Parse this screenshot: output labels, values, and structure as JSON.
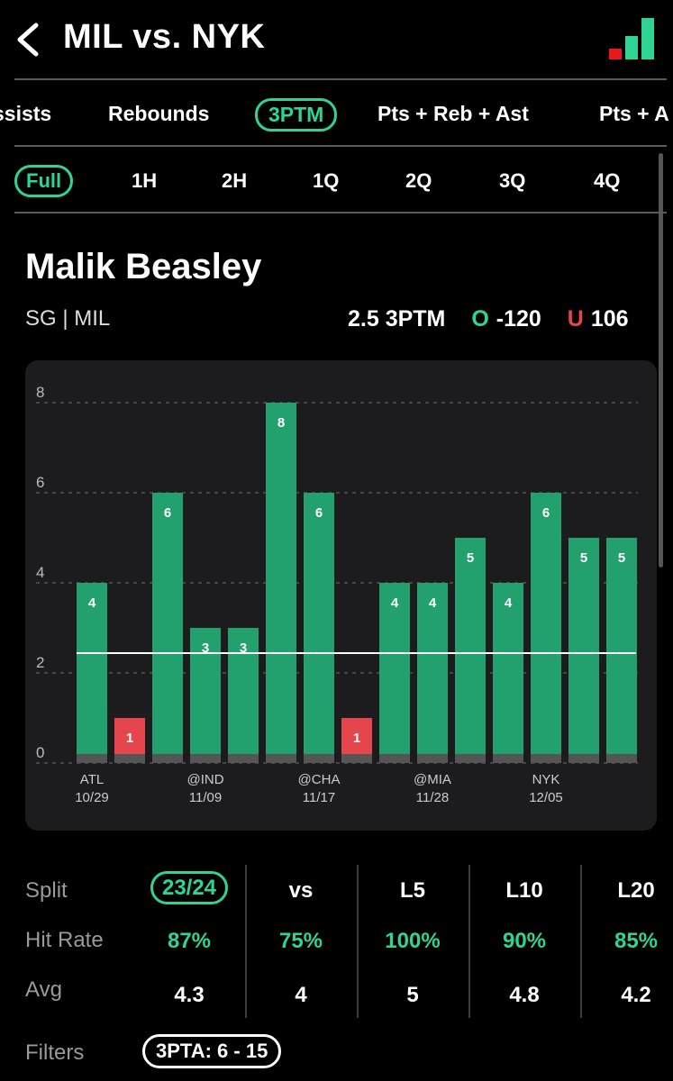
{
  "header": {
    "title": "MIL vs. NYK"
  },
  "market_tabs": [
    {
      "label": "ssists",
      "active": false
    },
    {
      "label": "Rebounds",
      "active": false
    },
    {
      "label": "3PTM",
      "active": true
    },
    {
      "label": "Pts + Reb + Ast",
      "active": false
    },
    {
      "label": "Pts + A",
      "active": false
    }
  ],
  "period_tabs": [
    {
      "label": "Full",
      "active": true
    },
    {
      "label": "1H",
      "active": false
    },
    {
      "label": "2H",
      "active": false
    },
    {
      "label": "1Q",
      "active": false
    },
    {
      "label": "2Q",
      "active": false
    },
    {
      "label": "3Q",
      "active": false
    },
    {
      "label": "4Q",
      "active": false
    }
  ],
  "player": {
    "name": "Malik Beasley",
    "position": "SG | MIL",
    "line": "2.5 3PTM",
    "over_label": "O",
    "over_odds": "-120",
    "under_label": "U",
    "under_odds": "106"
  },
  "colors": {
    "accent": "#2fd493",
    "hit": "#22a06e",
    "miss": "#e5454c",
    "card": "#1c1c1e"
  },
  "chart_data": {
    "type": "bar",
    "y_ticks": [
      0,
      2,
      4,
      6,
      8
    ],
    "ylim": [
      0,
      8
    ],
    "line_value": 2.5,
    "values": [
      4,
      1,
      6,
      3,
      3,
      8,
      6,
      1,
      4,
      4,
      5,
      4,
      6,
      5,
      5
    ],
    "x_labels": [
      {
        "index": 0,
        "team": "ATL",
        "date": "10/29"
      },
      {
        "index": 3,
        "team": "@IND",
        "date": "11/09"
      },
      {
        "index": 6,
        "team": "@CHA",
        "date": "11/17"
      },
      {
        "index": 9,
        "team": "@MIA",
        "date": "11/28"
      },
      {
        "index": 12,
        "team": "NYK",
        "date": "12/05"
      }
    ]
  },
  "stats": {
    "row_labels": {
      "split": "Split",
      "hit_rate": "Hit Rate",
      "avg": "Avg"
    },
    "columns": [
      {
        "split": "23/24",
        "hit_rate": "87%",
        "avg": "4.3",
        "active": true
      },
      {
        "split": "vs",
        "hit_rate": "75%",
        "avg": "4",
        "active": false
      },
      {
        "split": "L5",
        "hit_rate": "100%",
        "avg": "5",
        "active": false
      },
      {
        "split": "L10",
        "hit_rate": "90%",
        "avg": "4.8",
        "active": false
      },
      {
        "split": "L20",
        "hit_rate": "85%",
        "avg": "4.2",
        "active": false
      }
    ]
  },
  "filters": {
    "label": "Filters",
    "chip": "3PTA: 6 - 15"
  }
}
